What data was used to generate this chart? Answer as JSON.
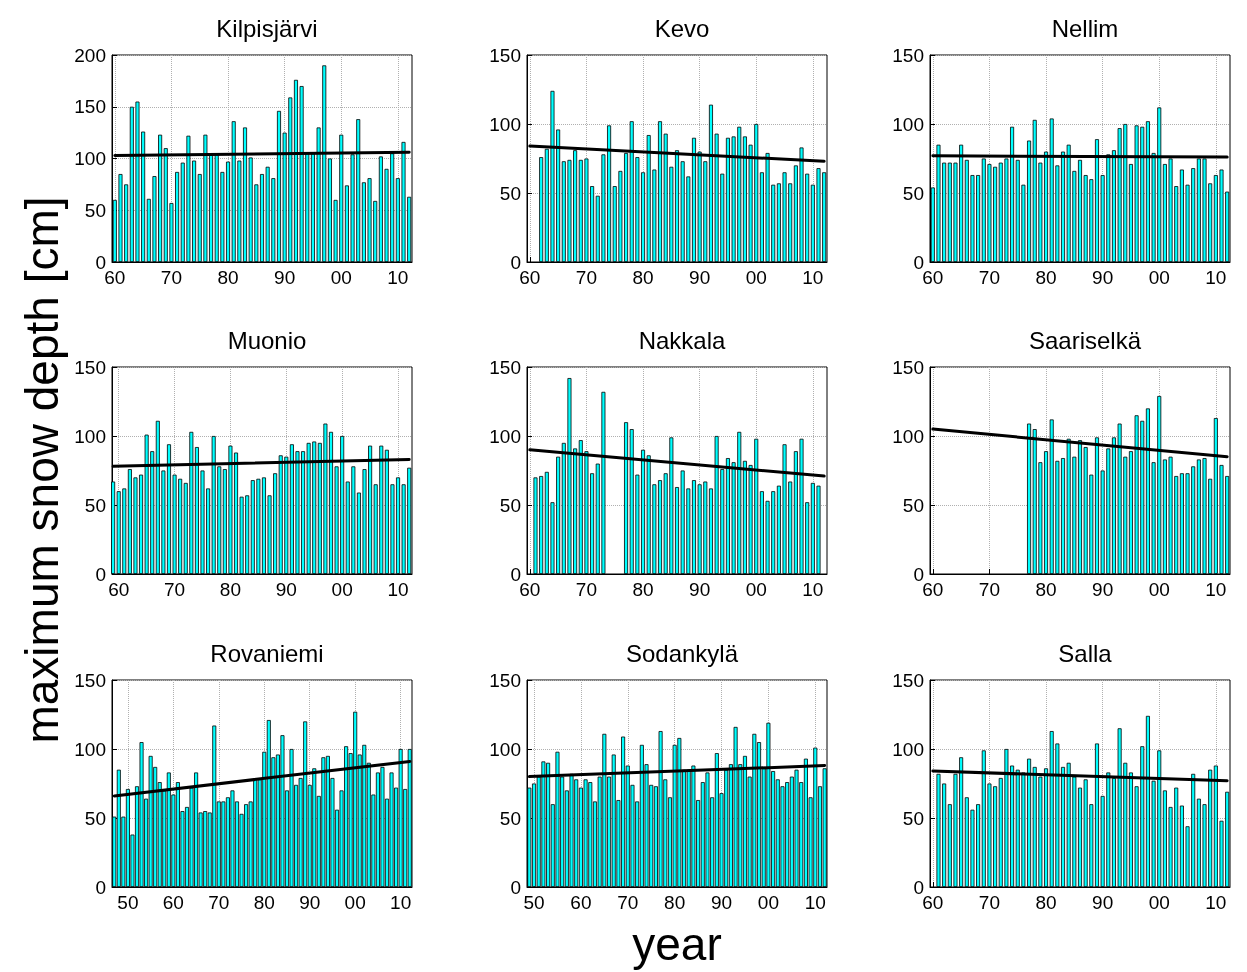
{
  "chart_data": [
    {
      "type": "bar",
      "title": "Kilpisjärvi",
      "xlim": [
        1959.5,
        2012.5
      ],
      "xticks": [
        {
          "value": 1960,
          "label": "60"
        },
        {
          "value": 1970,
          "label": "70"
        },
        {
          "value": 1980,
          "label": "80"
        },
        {
          "value": 1990,
          "label": "90"
        },
        {
          "value": 2000,
          "label": "00"
        },
        {
          "value": 2010,
          "label": "10"
        }
      ],
      "ylim": [
        0,
        200
      ],
      "yticks": [
        0,
        50,
        100,
        150,
        200
      ],
      "grid": true,
      "series": [
        {
          "color": "#00ffff",
          "x": [
            1960,
            1961,
            1962,
            1963,
            1964,
            1965,
            1966,
            1967,
            1968,
            1969,
            1970,
            1971,
            1972,
            1973,
            1974,
            1975,
            1976,
            1977,
            1978,
            1979,
            1980,
            1981,
            1982,
            1983,
            1984,
            1985,
            1986,
            1987,
            1988,
            1989,
            1990,
            1991,
            1992,
            1993,
            1994,
            1995,
            1996,
            1997,
            1998,
            1999,
            2000,
            2001,
            2002,
            2003,
            2004,
            2005,
            2006,
            2007,
            2008,
            2009,
            2010,
            2011,
            2012
          ],
          "values": [
            60,
            85,
            75,
            150,
            155,
            126,
            61,
            83,
            123,
            110,
            57,
            87,
            96,
            122,
            98,
            85,
            123,
            105,
            105,
            87,
            97,
            136,
            98,
            130,
            101,
            75,
            85,
            92,
            81,
            146,
            125,
            159,
            176,
            170,
            105,
            105,
            130,
            190,
            100,
            60,
            123,
            74,
            104,
            138,
            77,
            81,
            59,
            102,
            90,
            105,
            81,
            116,
            63
          ]
        },
        {
          "type": "line",
          "color": "#000000",
          "x": [
            1960,
            2012
          ],
          "values": [
            103,
            106
          ]
        }
      ]
    },
    {
      "type": "bar",
      "title": "Kevo",
      "xlim": [
        1959.5,
        2012.5
      ],
      "xticks": [
        {
          "value": 1960,
          "label": "60"
        },
        {
          "value": 1970,
          "label": "70"
        },
        {
          "value": 1980,
          "label": "80"
        },
        {
          "value": 1990,
          "label": "90"
        },
        {
          "value": 2000,
          "label": "00"
        },
        {
          "value": 2010,
          "label": "10"
        }
      ],
      "ylim": [
        0,
        150
      ],
      "yticks": [
        0,
        50,
        100,
        150
      ],
      "grid": true,
      "series": [
        {
          "color": "#00ffff",
          "x": [
            1962,
            1963,
            1964,
            1965,
            1966,
            1967,
            1968,
            1969,
            1970,
            1971,
            1972,
            1973,
            1974,
            1975,
            1976,
            1977,
            1978,
            1979,
            1980,
            1981,
            1982,
            1983,
            1984,
            1985,
            1986,
            1987,
            1988,
            1989,
            1990,
            1991,
            1992,
            1993,
            1994,
            1995,
            1996,
            1997,
            1998,
            1999,
            2000,
            2001,
            2002,
            2003,
            2004,
            2005,
            2006,
            2007,
            2008,
            2009,
            2010,
            2011,
            2012
          ],
          "values": [
            76,
            82,
            124,
            96,
            73,
            74,
            81,
            74,
            75,
            55,
            48,
            78,
            99,
            55,
            66,
            79,
            102,
            76,
            65,
            92,
            67,
            102,
            93,
            69,
            81,
            73,
            62,
            90,
            80,
            73,
            114,
            93,
            64,
            90,
            91,
            98,
            91,
            85,
            100,
            65,
            79,
            56,
            57,
            65,
            57,
            70,
            83,
            64,
            56,
            68,
            65
          ]
        },
        {
          "type": "line",
          "color": "#000000",
          "x": [
            1960,
            2012
          ],
          "values": [
            84,
            73
          ]
        }
      ]
    },
    {
      "type": "bar",
      "title": "Nellim",
      "xlim": [
        1959.5,
        2012.5
      ],
      "xticks": [
        {
          "value": 1960,
          "label": "60"
        },
        {
          "value": 1970,
          "label": "70"
        },
        {
          "value": 1980,
          "label": "80"
        },
        {
          "value": 1990,
          "label": "90"
        },
        {
          "value": 2000,
          "label": "00"
        },
        {
          "value": 2010,
          "label": "10"
        }
      ],
      "ylim": [
        0,
        150
      ],
      "yticks": [
        0,
        50,
        100,
        150
      ],
      "grid": true,
      "series": [
        {
          "color": "#00ffff",
          "x": [
            1960,
            1961,
            1962,
            1963,
            1964,
            1965,
            1966,
            1967,
            1968,
            1969,
            1970,
            1971,
            1972,
            1973,
            1974,
            1975,
            1976,
            1977,
            1978,
            1979,
            1980,
            1981,
            1982,
            1983,
            1984,
            1985,
            1986,
            1987,
            1988,
            1989,
            1990,
            1991,
            1992,
            1993,
            1994,
            1995,
            1996,
            1997,
            1998,
            1999,
            2000,
            2001,
            2002,
            2003,
            2004,
            2005,
            2006,
            2007,
            2008,
            2009,
            2010,
            2011,
            2012
          ],
          "values": [
            54,
            85,
            72,
            72,
            72,
            85,
            74,
            63,
            63,
            75,
            71,
            69,
            72,
            75,
            98,
            74,
            56,
            88,
            103,
            72,
            80,
            104,
            70,
            80,
            85,
            66,
            74,
            63,
            60,
            89,
            63,
            78,
            81,
            97,
            100,
            71,
            99,
            98,
            102,
            79,
            112,
            71,
            75,
            55,
            67,
            56,
            68,
            75,
            75,
            57,
            63,
            67,
            51
          ]
        },
        {
          "type": "line",
          "color": "#000000",
          "x": [
            1960,
            2012
          ],
          "values": [
            77,
            76
          ]
        }
      ]
    },
    {
      "type": "bar",
      "title": "Muonio",
      "ylabel": "maximum snow depth [cm]",
      "xlim": [
        1958.8,
        2012.5
      ],
      "xticks": [
        {
          "value": 1960,
          "label": "60"
        },
        {
          "value": 1970,
          "label": "70"
        },
        {
          "value": 1980,
          "label": "80"
        },
        {
          "value": 1990,
          "label": "90"
        },
        {
          "value": 2000,
          "label": "00"
        },
        {
          "value": 2010,
          "label": "10"
        }
      ],
      "ylim": [
        0,
        150
      ],
      "yticks": [
        0,
        50,
        100,
        150
      ],
      "grid": true,
      "series": [
        {
          "color": "#00ffff",
          "x": [
            1959,
            1960,
            1961,
            1962,
            1963,
            1964,
            1965,
            1966,
            1967,
            1968,
            1969,
            1970,
            1971,
            1972,
            1973,
            1974,
            1975,
            1976,
            1977,
            1978,
            1979,
            1980,
            1981,
            1982,
            1983,
            1984,
            1985,
            1986,
            1987,
            1988,
            1989,
            1990,
            1991,
            1992,
            1993,
            1994,
            1995,
            1996,
            1997,
            1998,
            1999,
            2000,
            2001,
            2002,
            2003,
            2004,
            2005,
            2006,
            2007,
            2008,
            2009,
            2010,
            2011,
            2012
          ],
          "values": [
            67,
            60,
            62,
            76,
            70,
            72,
            101,
            89,
            111,
            75,
            94,
            72,
            69,
            66,
            103,
            92,
            75,
            62,
            100,
            78,
            76,
            93,
            88,
            56,
            57,
            68,
            69,
            70,
            57,
            73,
            86,
            85,
            94,
            89,
            89,
            95,
            96,
            95,
            109,
            103,
            78,
            100,
            67,
            78,
            59,
            76,
            93,
            65,
            93,
            90,
            65,
            70,
            65,
            77
          ]
        },
        {
          "type": "line",
          "color": "#000000",
          "x": [
            1959,
            2012
          ],
          "values": [
            78,
            83
          ]
        }
      ]
    },
    {
      "type": "bar",
      "title": "Nakkala",
      "xlim": [
        1959.5,
        2012.5
      ],
      "xticks": [
        {
          "value": 1960,
          "label": "60"
        },
        {
          "value": 1970,
          "label": "70"
        },
        {
          "value": 1980,
          "label": "80"
        },
        {
          "value": 1990,
          "label": "90"
        },
        {
          "value": 2000,
          "label": "00"
        },
        {
          "value": 2010,
          "label": "10"
        }
      ],
      "ylim": [
        0,
        150
      ],
      "yticks": [
        0,
        50,
        100,
        150
      ],
      "grid": true,
      "series": [
        {
          "color": "#00ffff",
          "x": [
            1961,
            1962,
            1963,
            1964,
            1965,
            1966,
            1967,
            1968,
            1969,
            1970,
            1971,
            1972,
            1973,
            1977,
            1978,
            1979,
            1980,
            1981,
            1982,
            1983,
            1984,
            1985,
            1986,
            1987,
            1988,
            1989,
            1990,
            1991,
            1992,
            1993,
            1994,
            1995,
            1996,
            1997,
            1998,
            1999,
            2000,
            2001,
            2002,
            2003,
            2004,
            2005,
            2006,
            2007,
            2008,
            2009,
            2010,
            2011
          ],
          "values": [
            70,
            71,
            74,
            52,
            85,
            95,
            142,
            91,
            97,
            89,
            73,
            80,
            132,
            110,
            105,
            72,
            90,
            86,
            65,
            68,
            73,
            99,
            63,
            75,
            62,
            68,
            65,
            67,
            62,
            100,
            76,
            84,
            81,
            103,
            82,
            79,
            98,
            60,
            53,
            60,
            64,
            94,
            67,
            89,
            98,
            52,
            66,
            64
          ]
        },
        {
          "type": "line",
          "color": "#000000",
          "x": [
            1960,
            2012
          ],
          "values": [
            90,
            71
          ]
        }
      ]
    },
    {
      "type": "bar",
      "title": "Saariselkä",
      "xlim": [
        1959.5,
        2012.5
      ],
      "xticks": [
        {
          "value": 1960,
          "label": "60"
        },
        {
          "value": 1970,
          "label": "70"
        },
        {
          "value": 1980,
          "label": "80"
        },
        {
          "value": 1990,
          "label": "90"
        },
        {
          "value": 2000,
          "label": "00"
        },
        {
          "value": 2010,
          "label": "10"
        }
      ],
      "ylim": [
        0,
        150
      ],
      "yticks": [
        0,
        50,
        100,
        150
      ],
      "grid": true,
      "series": [
        {
          "color": "#00ffff",
          "x": [
            1977,
            1978,
            1979,
            1980,
            1981,
            1982,
            1983,
            1984,
            1985,
            1986,
            1987,
            1988,
            1989,
            1990,
            1991,
            1992,
            1993,
            1994,
            1995,
            1996,
            1997,
            1998,
            1999,
            2000,
            2001,
            2002,
            2003,
            2004,
            2005,
            2006,
            2007,
            2008,
            2009,
            2010,
            2011,
            2012
          ],
          "values": [
            109,
            105,
            81,
            89,
            112,
            82,
            84,
            98,
            85,
            97,
            92,
            72,
            99,
            75,
            91,
            99,
            109,
            85,
            89,
            115,
            111,
            120,
            81,
            129,
            83,
            85,
            71,
            73,
            73,
            78,
            83,
            84,
            69,
            113,
            79,
            71
          ]
        },
        {
          "type": "line",
          "color": "#000000",
          "x": [
            1960,
            2012
          ],
          "values": [
            105,
            85
          ]
        }
      ]
    },
    {
      "type": "bar",
      "title": "Rovaniemi",
      "xlim": [
        1946.5,
        2012.5
      ],
      "xticks": [
        {
          "value": 1950,
          "label": "50"
        },
        {
          "value": 1960,
          "label": "60"
        },
        {
          "value": 1970,
          "label": "70"
        },
        {
          "value": 1980,
          "label": "80"
        },
        {
          "value": 1990,
          "label": "90"
        },
        {
          "value": 2000,
          "label": "00"
        },
        {
          "value": 2010,
          "label": "10"
        }
      ],
      "ylim": [
        0,
        150
      ],
      "yticks": [
        0,
        50,
        100,
        150
      ],
      "grid": true,
      "series": [
        {
          "color": "#00ffff",
          "x": [
            1947,
            1948,
            1949,
            1950,
            1951,
            1952,
            1953,
            1954,
            1955,
            1956,
            1957,
            1958,
            1959,
            1960,
            1961,
            1962,
            1963,
            1964,
            1965,
            1966,
            1967,
            1968,
            1969,
            1970,
            1971,
            1972,
            1973,
            1974,
            1975,
            1976,
            1977,
            1978,
            1979,
            1980,
            1981,
            1982,
            1983,
            1984,
            1985,
            1986,
            1987,
            1988,
            1989,
            1990,
            1991,
            1992,
            1993,
            1994,
            1995,
            1996,
            1997,
            1998,
            1999,
            2000,
            2001,
            2002,
            2003,
            2004,
            2005,
            2006,
            2007,
            2008,
            2009,
            2010,
            2011,
            2012
          ],
          "values": [
            51,
            85,
            51,
            71,
            38,
            73,
            105,
            64,
            95,
            87,
            76,
            70,
            83,
            67,
            76,
            55,
            58,
            72,
            83,
            54,
            55,
            54,
            117,
            62,
            62,
            65,
            70,
            62,
            53,
            60,
            62,
            78,
            78,
            98,
            121,
            94,
            96,
            110,
            70,
            100,
            74,
            79,
            120,
            74,
            86,
            66,
            94,
            95,
            79,
            56,
            70,
            102,
            97,
            127,
            96,
            103,
            90,
            67,
            83,
            87,
            64,
            83,
            72,
            100,
            71,
            100
          ]
        },
        {
          "type": "line",
          "color": "#000000",
          "x": [
            1947,
            2012
          ],
          "values": [
            66,
            91
          ]
        }
      ]
    },
    {
      "type": "bar",
      "title": "Sodankylä",
      "xlabel": "year",
      "xlim": [
        1948.5,
        2012.5
      ],
      "xticks": [
        {
          "value": 1950,
          "label": "50"
        },
        {
          "value": 1960,
          "label": "60"
        },
        {
          "value": 1970,
          "label": "70"
        },
        {
          "value": 1980,
          "label": "80"
        },
        {
          "value": 1990,
          "label": "90"
        },
        {
          "value": 2000,
          "label": "00"
        },
        {
          "value": 2010,
          "label": "10"
        }
      ],
      "ylim": [
        0,
        150
      ],
      "yticks": [
        0,
        50,
        100,
        150
      ],
      "grid": true,
      "series": [
        {
          "color": "#00ffff",
          "x": [
            1949,
            1950,
            1951,
            1952,
            1953,
            1954,
            1955,
            1956,
            1957,
            1958,
            1959,
            1960,
            1961,
            1962,
            1963,
            1964,
            1965,
            1966,
            1967,
            1968,
            1969,
            1970,
            1971,
            1972,
            1973,
            1974,
            1975,
            1976,
            1977,
            1978,
            1979,
            1980,
            1981,
            1982,
            1983,
            1984,
            1985,
            1986,
            1987,
            1988,
            1989,
            1990,
            1991,
            1992,
            1993,
            1994,
            1995,
            1996,
            1997,
            1998,
            1999,
            2000,
            2001,
            2002,
            2003,
            2004,
            2005,
            2006,
            2007,
            2008,
            2009,
            2010,
            2011,
            2012
          ],
          "values": [
            72,
            75,
            80,
            91,
            90,
            60,
            98,
            80,
            70,
            82,
            78,
            72,
            78,
            76,
            62,
            80,
            111,
            80,
            96,
            63,
            109,
            88,
            74,
            62,
            103,
            89,
            74,
            73,
            113,
            78,
            65,
            103,
            108,
            85,
            85,
            88,
            63,
            76,
            83,
            65,
            97,
            68,
            85,
            89,
            116,
            89,
            95,
            80,
            111,
            105,
            87,
            119,
            84,
            78,
            73,
            76,
            80,
            85,
            76,
            93,
            65,
            101,
            73,
            86
          ]
        },
        {
          "type": "line",
          "color": "#000000",
          "x": [
            1949,
            2012
          ],
          "values": [
            80,
            88
          ]
        }
      ]
    },
    {
      "type": "bar",
      "title": "Salla",
      "xlim": [
        1959.5,
        2012.5
      ],
      "xticks": [
        {
          "value": 1960,
          "label": "60"
        },
        {
          "value": 1970,
          "label": "70"
        },
        {
          "value": 1980,
          "label": "80"
        },
        {
          "value": 1990,
          "label": "90"
        },
        {
          "value": 2000,
          "label": "00"
        },
        {
          "value": 2010,
          "label": "10"
        }
      ],
      "ylim": [
        0,
        150
      ],
      "yticks": [
        0,
        50,
        100,
        150
      ],
      "grid": true,
      "series": [
        {
          "color": "#00ffff",
          "x": [
            1961,
            1962,
            1963,
            1964,
            1965,
            1966,
            1967,
            1968,
            1969,
            1970,
            1971,
            1972,
            1973,
            1974,
            1975,
            1976,
            1977,
            1978,
            1979,
            1980,
            1981,
            1982,
            1983,
            1984,
            1985,
            1986,
            1987,
            1988,
            1989,
            1990,
            1991,
            1992,
            1993,
            1994,
            1995,
            1996,
            1997,
            1998,
            1999,
            2000,
            2001,
            2002,
            2003,
            2004,
            2005,
            2006,
            2007,
            2008,
            2009,
            2010,
            2011,
            2012
          ],
          "values": [
            82,
            75,
            60,
            82,
            94,
            65,
            56,
            60,
            99,
            75,
            73,
            79,
            100,
            88,
            85,
            83,
            93,
            87,
            80,
            86,
            113,
            104,
            87,
            90,
            80,
            72,
            78,
            60,
            104,
            66,
            83,
            79,
            115,
            90,
            83,
            73,
            102,
            124,
            77,
            99,
            70,
            58,
            72,
            59,
            44,
            82,
            64,
            60,
            85,
            88,
            48,
            69
          ]
        },
        {
          "type": "line",
          "color": "#000000",
          "x": [
            1960,
            2012
          ],
          "values": [
            84,
            77
          ]
        }
      ]
    }
  ]
}
